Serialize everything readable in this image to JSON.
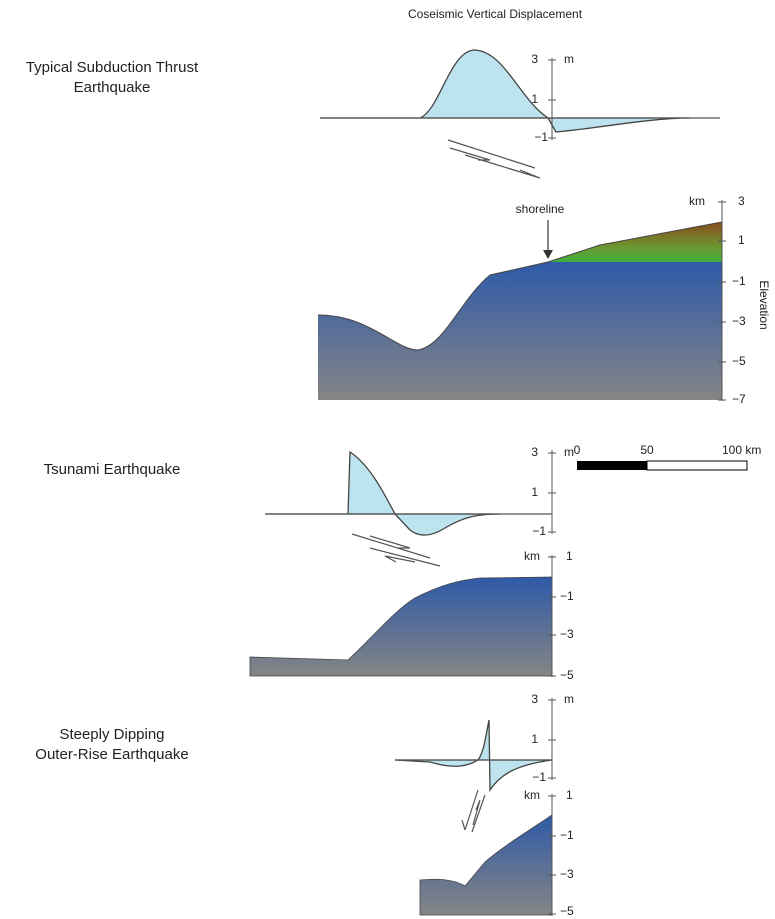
{
  "title": "Coseismic Vertical Displacement",
  "panels": [
    {
      "label_lines": [
        "Typical Subduction Thrust",
        "Earthquake"
      ],
      "displacement": {
        "unit": "m",
        "ticks": [
          "3",
          "1",
          "−1"
        ]
      },
      "elevation": {
        "unit": "km",
        "ticks": [
          "3",
          "1",
          "−1",
          "−3",
          "−5",
          "−7"
        ]
      }
    },
    {
      "label_lines": [
        "Tsunami Earthquake"
      ],
      "displacement": {
        "unit": "m",
        "ticks": [
          "3",
          "1",
          "−1"
        ]
      },
      "elevation": {
        "unit": "km",
        "ticks": [
          "1",
          "−1",
          "−3",
          "−5"
        ]
      }
    },
    {
      "label_lines": [
        "Steeply Dipping",
        "Outer-Rise Earthquake"
      ],
      "displacement": {
        "unit": "m",
        "ticks": [
          "3",
          "1",
          "−1"
        ]
      },
      "elevation": {
        "unit": "km",
        "ticks": [
          "1",
          "−1",
          "−3",
          "−5"
        ]
      }
    }
  ],
  "shoreline": "shoreline",
  "elevation_label": "Elevation",
  "scale_bar": [
    "0",
    "50",
    "100 km"
  ]
}
